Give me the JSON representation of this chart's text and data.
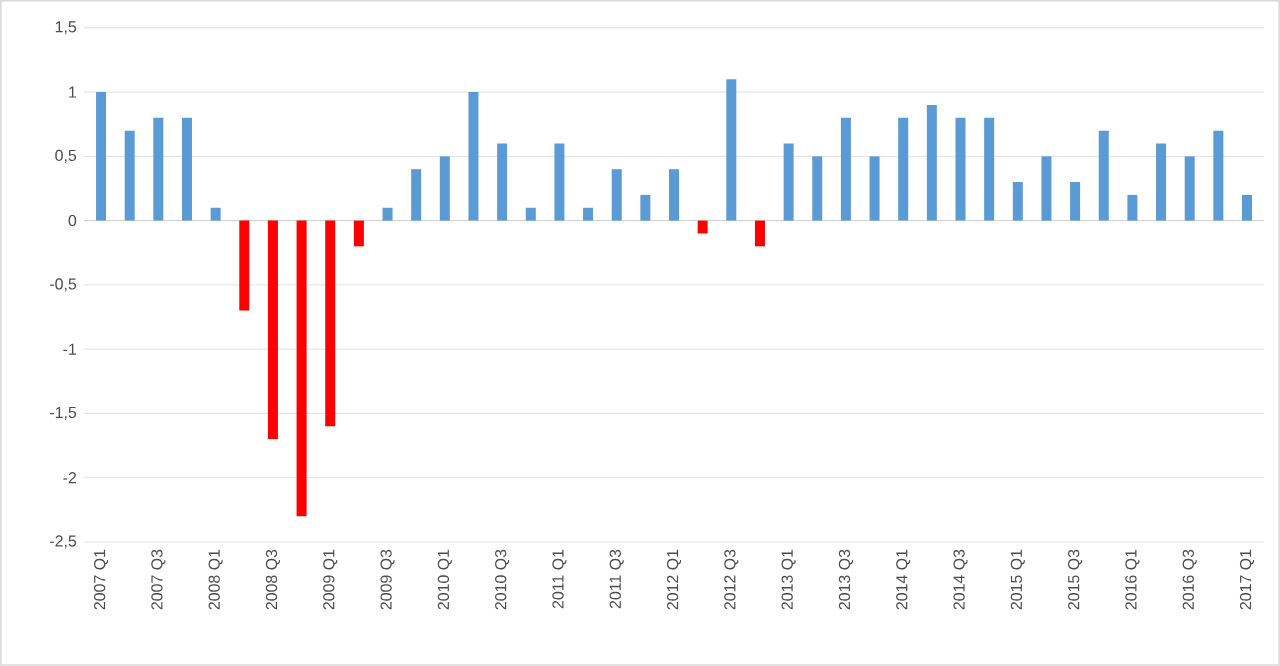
{
  "chart_data": {
    "type": "bar",
    "categories": [
      "2007 Q1",
      null,
      "2007 Q3",
      null,
      "2008 Q1",
      null,
      "2008 Q3",
      null,
      "2009 Q1",
      null,
      "2009 Q3",
      null,
      "2010 Q1",
      null,
      "2010 Q3",
      null,
      "2011 Q1",
      null,
      "2011 Q3",
      null,
      "2012 Q1",
      null,
      "2012 Q3",
      null,
      "2013 Q1",
      null,
      "2013 Q3",
      null,
      "2014 Q1",
      null,
      "2014 Q3",
      null,
      "2015 Q1",
      null,
      "2015 Q3",
      null,
      "2016 Q1",
      null,
      "2016 Q3",
      null,
      "2017 Q1"
    ],
    "values": [
      1.0,
      0.7,
      0.8,
      0.8,
      0.1,
      -0.7,
      -1.7,
      -2.3,
      -1.6,
      -0.2,
      0.1,
      0.4,
      0.5,
      1.0,
      0.6,
      0.1,
      0.6,
      0.1,
      0.4,
      0.2,
      0.4,
      -0.1,
      1.1,
      -0.2,
      0.6,
      0.5,
      0.8,
      0.5,
      0.8,
      0.9,
      0.8,
      0.8,
      0.3,
      0.5,
      0.3,
      0.7,
      0.2,
      0.6,
      0.5,
      0.7,
      0.2
    ],
    "colors": [
      "#5b9bd5",
      "#5b9bd5",
      "#5b9bd5",
      "#5b9bd5",
      "#5b9bd5",
      "#ff0000",
      "#ff0000",
      "#ff0000",
      "#ff0000",
      "#ff0000",
      "#5b9bd5",
      "#5b9bd5",
      "#5b9bd5",
      "#5b9bd5",
      "#5b9bd5",
      "#5b9bd5",
      "#5b9bd5",
      "#5b9bd5",
      "#5b9bd5",
      "#5b9bd5",
      "#5b9bd5",
      "#ff0000",
      "#5b9bd5",
      "#ff0000",
      "#5b9bd5",
      "#5b9bd5",
      "#5b9bd5",
      "#5b9bd5",
      "#5b9bd5",
      "#5b9bd5",
      "#5b9bd5",
      "#5b9bd5",
      "#5b9bd5",
      "#5b9bd5",
      "#5b9bd5",
      "#5b9bd5",
      "#5b9bd5",
      "#5b9bd5",
      "#5b9bd5",
      "#5b9bd5",
      "#5b9bd5"
    ],
    "ylim": [
      -2.5,
      1.5
    ],
    "yticks": [
      {
        "value": -2.5,
        "label": "-2,5"
      },
      {
        "value": -2,
        "label": "-2"
      },
      {
        "value": -1.5,
        "label": "-1,5"
      },
      {
        "value": -1,
        "label": "-1"
      },
      {
        "value": -0.5,
        "label": "-0,5"
      },
      {
        "value": 0,
        "label": "0"
      },
      {
        "value": 0.5,
        "label": "0,5"
      },
      {
        "value": 1,
        "label": "1"
      },
      {
        "value": 1.5,
        "label": "1,5"
      }
    ],
    "grid": "y"
  }
}
